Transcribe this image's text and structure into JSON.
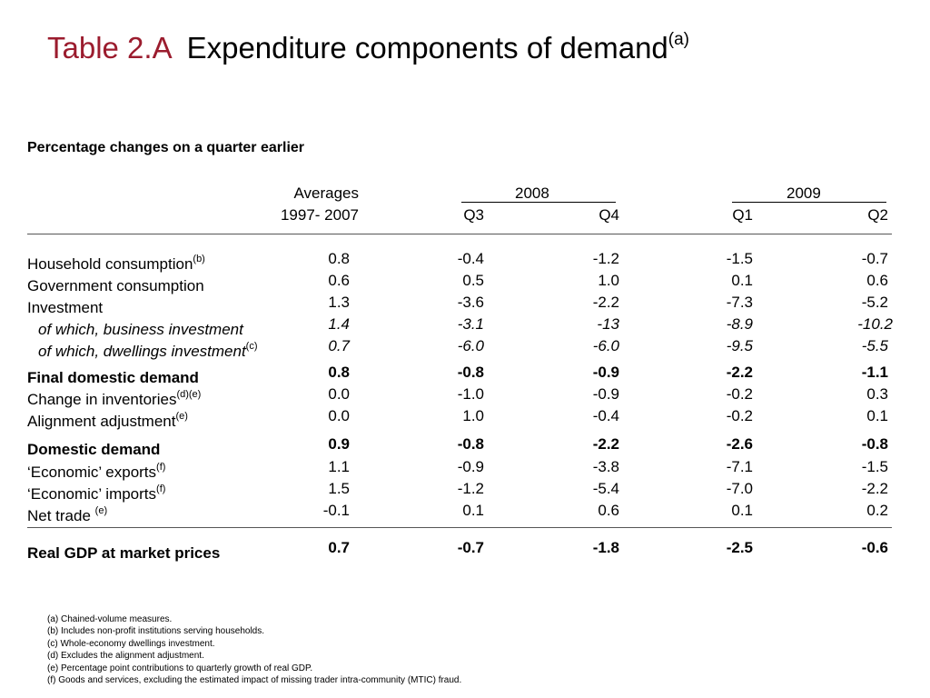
{
  "title": {
    "tag": "Table 2.A",
    "text": "Expenditure components of demand",
    "sup": "(a)"
  },
  "subtitle": "Percentage changes on a quarter earlier",
  "header": {
    "avg_line1": "Averages",
    "avg_line2": "1997- 2007",
    "year1": "2008",
    "year2": "2009",
    "q_2008a": "Q3",
    "q_2008b": "Q4",
    "q_2009a": "Q1",
    "q_2009b": "Q2"
  },
  "rows": [
    {
      "label": "Household consumption",
      "sup": "(b)",
      "avg": "0.8",
      "q3_2008": "-0.4",
      "q4_2008": "-1.2",
      "q1_2009": "-1.5",
      "q2_2009": "-0.7"
    },
    {
      "label": "Government consumption",
      "sup": "",
      "avg": "0.6",
      "q3_2008": "0.5",
      "q4_2008": "1.0",
      "q1_2009": "0.1",
      "q2_2009": "0.6"
    },
    {
      "label": "Investment",
      "sup": "",
      "avg": "1.3",
      "q3_2008": "-3.6",
      "q4_2008": "-2.2",
      "q1_2009": "-7.3",
      "q2_2009": "-5.2"
    },
    {
      "label": "of which, business investment",
      "sup": "",
      "avg": "1.4",
      "q3_2008": "-3.1",
      "q4_2008": "-13",
      "q1_2009": "-8.9",
      "q2_2009": "-10.2"
    },
    {
      "label": "of which, dwellings investment",
      "sup": "(c)",
      "avg": "0.7",
      "q3_2008": "-6.0",
      "q4_2008": "-6.0",
      "q1_2009": "-9.5",
      "q2_2009": "-5.5"
    },
    {
      "label": "Final domestic demand",
      "sup": "",
      "avg": "0.8",
      "q3_2008": "-0.8",
      "q4_2008": "-0.9",
      "q1_2009": "-2.2",
      "q2_2009": "-1.1"
    },
    {
      "label": "Change in inventories",
      "sup": "(d)(e)",
      "avg": "0.0",
      "q3_2008": "-1.0",
      "q4_2008": "-0.9",
      "q1_2009": "-0.2",
      "q2_2009": "0.3"
    },
    {
      "label": "Alignment adjustment",
      "sup": "(e)",
      "avg": "0.0",
      "q3_2008": "1.0",
      "q4_2008": "-0.4",
      "q1_2009": "-0.2",
      "q2_2009": "0.1"
    },
    {
      "label": "Domestic demand",
      "sup": "",
      "avg": "0.9",
      "q3_2008": "-0.8",
      "q4_2008": "-2.2",
      "q1_2009": "-2.6",
      "q2_2009": "-0.8"
    },
    {
      "label": "‘Economic’ exports",
      "sup": "(f)",
      "avg": "1.1",
      "q3_2008": "-0.9",
      "q4_2008": "-3.8",
      "q1_2009": "-7.1",
      "q2_2009": "-1.5"
    },
    {
      "label": "‘Economic’ imports",
      "sup": "(f)",
      "avg": "1.5",
      "q3_2008": "-1.2",
      "q4_2008": "-5.4",
      "q1_2009": "-7.0",
      "q2_2009": "-2.2"
    },
    {
      "label": "Net trade",
      "sup": "(e)",
      "avg": "-0.1",
      "q3_2008": "0.1",
      "q4_2008": "0.6",
      "q1_2009": "0.1",
      "q2_2009": "0.2"
    },
    {
      "label": "Real GDP at market prices",
      "sup": "",
      "avg": "0.7",
      "q3_2008": "-0.7",
      "q4_2008": "-1.8",
      "q1_2009": "-2.5",
      "q2_2009": "-0.6"
    }
  ],
  "footnotes": [
    "(a)  Chained-volume measures.",
    "(b)  Includes non-profit institutions serving households.",
    "(c)  Whole-economy dwellings investment.",
    "(d)  Excludes the alignment adjustment.",
    "(e)  Percentage point contributions to quarterly growth of real GDP.",
    "(f)  Goods and services, excluding the estimated impact of missing trader intra-community (MTIC) fraud."
  ]
}
